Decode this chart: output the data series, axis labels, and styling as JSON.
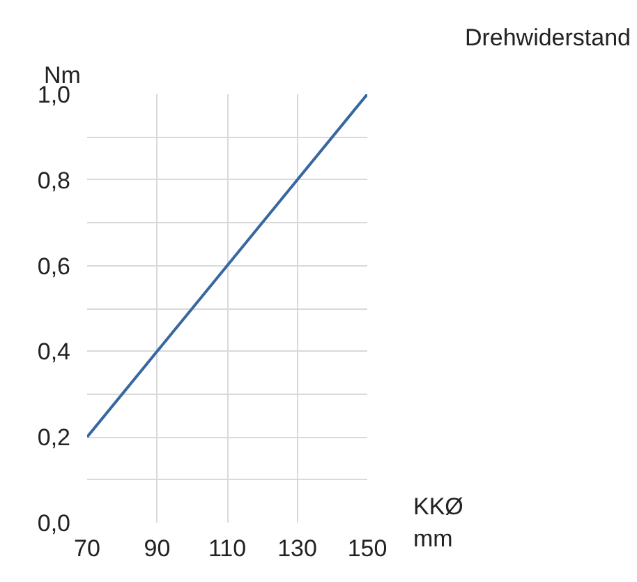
{
  "chart_data": {
    "type": "line",
    "title": "Drehwiderstand",
    "xlabel": "KKØ mm",
    "ylabel": "Nm",
    "x": [
      70,
      150
    ],
    "series": [
      {
        "color": "#3767a0",
        "values": [
          0.2,
          1.0
        ]
      }
    ],
    "xlim": [
      70,
      150
    ],
    "xticks": [
      70,
      90,
      110,
      130,
      150
    ],
    "ylim": [
      0,
      1
    ],
    "yticks": [
      {
        "value": 0,
        "label": "0,0"
      },
      {
        "value": 0.1,
        "label": null
      },
      {
        "value": 0.2,
        "label": "0,2"
      },
      {
        "value": 0.3,
        "label": null
      },
      {
        "value": 0.4,
        "label": "0,4"
      },
      {
        "value": 0.5,
        "label": null
      },
      {
        "value": 0.6,
        "label": "0,6"
      },
      {
        "value": 0.7,
        "label": null
      },
      {
        "value": 0.8,
        "label": "0,8"
      },
      {
        "value": 0.9,
        "label": null
      },
      {
        "value": 1,
        "label": "1,0"
      }
    ],
    "grid": true,
    "marker": "none",
    "line_style": "solid"
  }
}
